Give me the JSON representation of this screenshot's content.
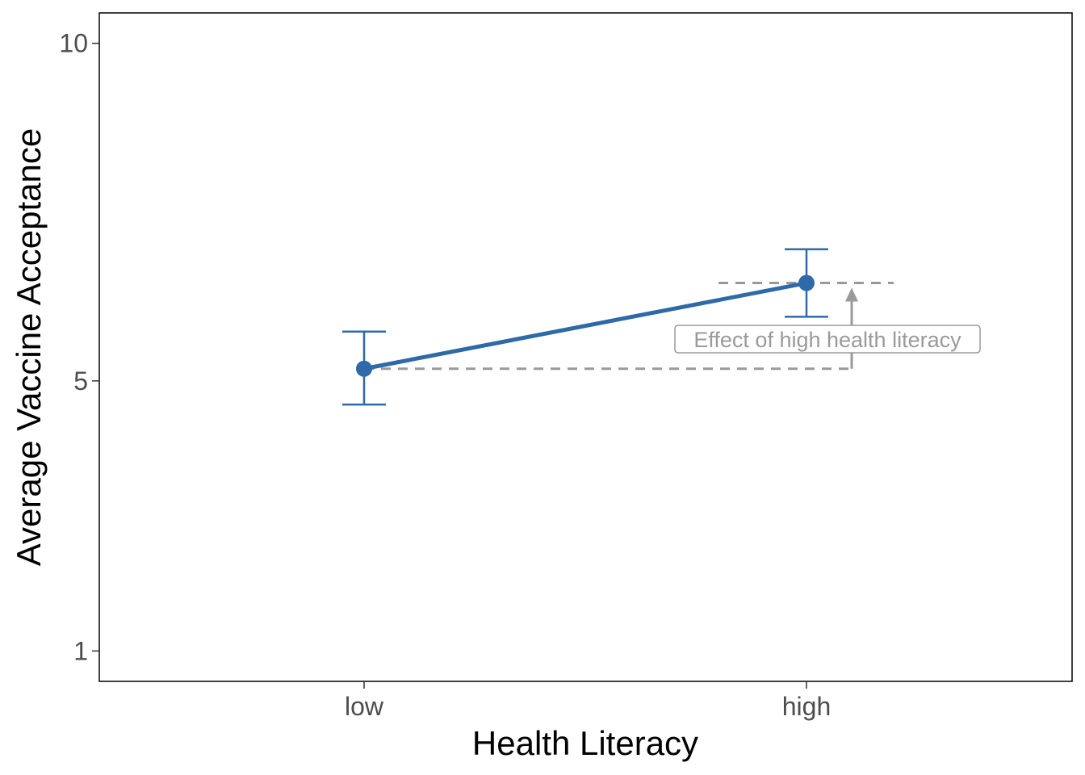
{
  "chart_data": {
    "type": "line",
    "xlabel": "Health Literacy",
    "ylabel": "Average Vaccine Acceptance",
    "categories": [
      "low",
      "high"
    ],
    "series": [
      {
        "values": [
          5.18,
          6.45
        ],
        "error_lower": [
          4.65,
          5.95
        ],
        "error_upper": [
          5.73,
          6.95
        ],
        "color": "#2E69A8"
      }
    ],
    "ylim": [
      0.55,
      10.45
    ],
    "yticks": [
      1,
      5,
      10
    ],
    "ytick_labels": [
      "1",
      "5",
      "10"
    ],
    "grid": false,
    "annotation": {
      "text": "Effect of high health literacy",
      "color": "#9a9a9a"
    }
  }
}
